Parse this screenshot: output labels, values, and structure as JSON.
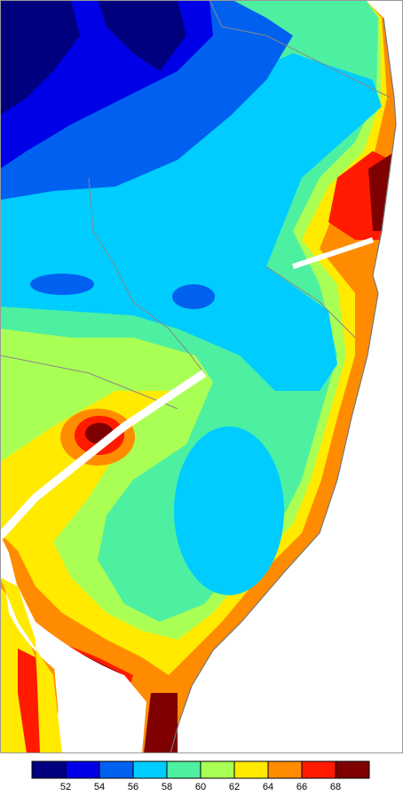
{
  "legend": {
    "colors": [
      "#00007f",
      "#0000e6",
      "#0060f0",
      "#00ccff",
      "#4df0a0",
      "#aaff55",
      "#ffea00",
      "#ff8c00",
      "#ff1a00",
      "#7f0000"
    ],
    "ticks": [
      52,
      54,
      56,
      58,
      60,
      62,
      64,
      66,
      68
    ]
  }
}
